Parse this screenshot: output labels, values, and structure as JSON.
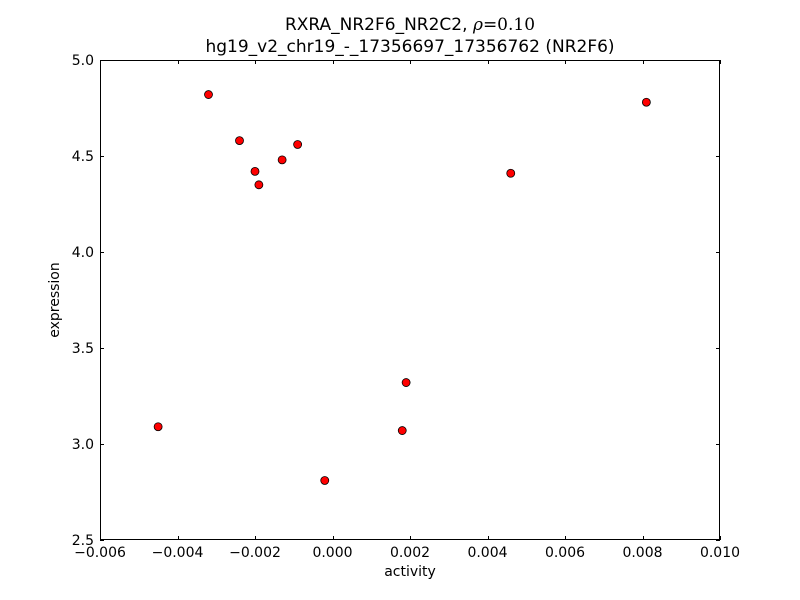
{
  "chart_data": {
    "type": "scatter",
    "title_line1_main": "RXRA_NR2F6_NR2C2, ",
    "title_line1_rho_symbol": "ρ",
    "title_line1_rho_value": "=0.10",
    "title_line2": "hg19_v2_chr19_-_17356697_17356762 (NR2F6)",
    "xlabel": "activity",
    "ylabel": "expression",
    "xlim": [
      -0.006,
      0.01
    ],
    "ylim": [
      2.5,
      5.0
    ],
    "xticks": [
      -0.006,
      -0.004,
      -0.002,
      0.0,
      0.002,
      0.004,
      0.006,
      0.008,
      0.01
    ],
    "xtick_labels": [
      "−0.006",
      "−0.004",
      "−0.002",
      "0.000",
      "0.002",
      "0.004",
      "0.006",
      "0.008",
      "0.010"
    ],
    "yticks": [
      2.5,
      3.0,
      3.5,
      4.0,
      4.5,
      5.0
    ],
    "ytick_labels": [
      "2.5",
      "3.0",
      "3.5",
      "4.0",
      "4.5",
      "5.0"
    ],
    "grid": false,
    "point_color": "#ff0000",
    "point_edge_color": "#000000",
    "points": [
      {
        "x": -0.0045,
        "y": 3.09
      },
      {
        "x": -0.0032,
        "y": 4.82
      },
      {
        "x": -0.0024,
        "y": 4.58
      },
      {
        "x": -0.002,
        "y": 4.42
      },
      {
        "x": -0.0019,
        "y": 4.35
      },
      {
        "x": -0.0013,
        "y": 4.48
      },
      {
        "x": -0.0009,
        "y": 4.56
      },
      {
        "x": -0.0002,
        "y": 2.81
      },
      {
        "x": 0.0018,
        "y": 3.07
      },
      {
        "x": 0.0019,
        "y": 3.32
      },
      {
        "x": 0.0046,
        "y": 4.41
      },
      {
        "x": 0.0081,
        "y": 4.78
      }
    ]
  }
}
